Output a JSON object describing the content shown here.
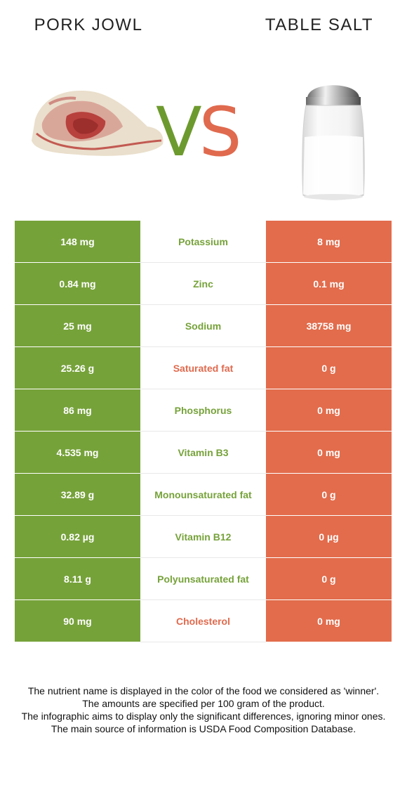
{
  "header": {
    "left_food": "PORK JOWL",
    "right_food": "TABLE SALT",
    "vs_v": "V",
    "vs_s": "S"
  },
  "colors": {
    "left_green": "#76a23a",
    "right_red": "#e26c4c"
  },
  "rows": [
    {
      "left": "148 mg",
      "nutrient": "Potassium",
      "right": "8 mg",
      "winner": "left"
    },
    {
      "left": "0.84 mg",
      "nutrient": "Zinc",
      "right": "0.1 mg",
      "winner": "left"
    },
    {
      "left": "25 mg",
      "nutrient": "Sodium",
      "right": "38758 mg",
      "winner": "left"
    },
    {
      "left": "25.26 g",
      "nutrient": "Saturated fat",
      "right": "0 g",
      "winner": "right"
    },
    {
      "left": "86 mg",
      "nutrient": "Phosphorus",
      "right": "0 mg",
      "winner": "left"
    },
    {
      "left": "4.535 mg",
      "nutrient": "Vitamin B3",
      "right": "0 mg",
      "winner": "left"
    },
    {
      "left": "32.89 g",
      "nutrient": "Monounsaturated fat",
      "right": "0 g",
      "winner": "left"
    },
    {
      "left": "0.82 µg",
      "nutrient": "Vitamin B12",
      "right": "0 µg",
      "winner": "left"
    },
    {
      "left": "8.11 g",
      "nutrient": "Polyunsaturated fat",
      "right": "0 g",
      "winner": "left"
    },
    {
      "left": "90 mg",
      "nutrient": "Cholesterol",
      "right": "0 mg",
      "winner": "right"
    }
  ],
  "footer": {
    "line1": "The nutrient name is displayed in the color of the food we considered as 'winner'.",
    "line2": "The amounts are specified per 100 gram of the product.",
    "line3": "The infographic aims to display only the significant differences, ignoring minor ones.",
    "line4": "The main source of information is USDA Food Composition Database."
  }
}
